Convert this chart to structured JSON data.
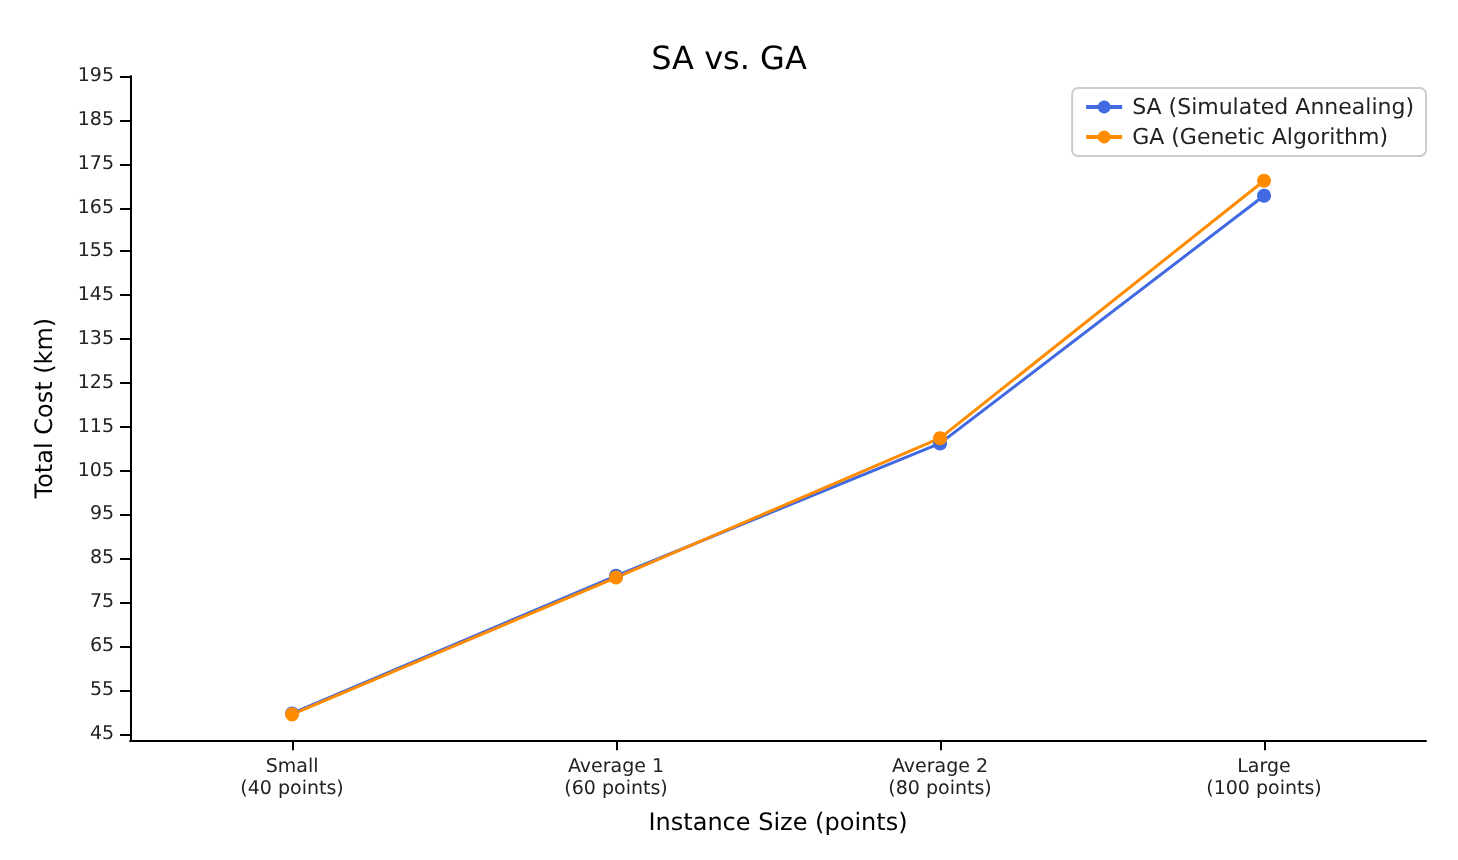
{
  "chart_data": {
    "type": "line",
    "title": "SA vs. GA",
    "xlabel": "Instance Size (points)",
    "ylabel": "Total Cost (km)",
    "categories": [
      "Small\n(40 points)",
      "Average 1\n(60 points)",
      "Average 2\n(80 points)",
      "Large\n(100 points)"
    ],
    "series": [
      {
        "name": "SA (Simulated Annealing)",
        "color": "#4169e1",
        "values": [
          49.6,
          81.0,
          111.2,
          167.7
        ]
      },
      {
        "name": "GA (Genetic Algorithm)",
        "color": "#ff8c00",
        "values": [
          49.4,
          80.6,
          112.4,
          171.1
        ]
      }
    ],
    "ylim": [
      43.5,
      195
    ],
    "yticks": [
      45,
      55,
      65,
      75,
      85,
      95,
      105,
      115,
      125,
      135,
      145,
      155,
      165,
      175,
      185,
      195
    ],
    "grid": false,
    "legend": "top right",
    "marker": "circle",
    "line_style": "solid"
  }
}
